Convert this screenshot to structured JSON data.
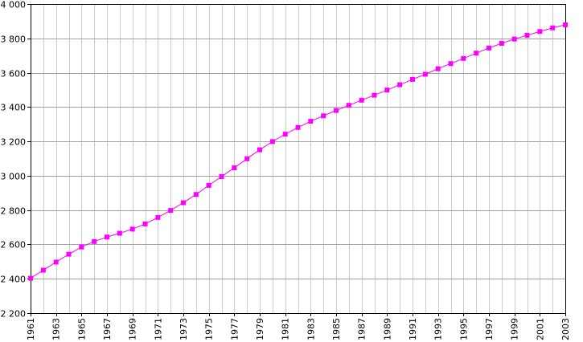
{
  "chart_data": {
    "type": "line",
    "title": "",
    "xlabel": "",
    "ylabel": "",
    "x": [
      1961,
      1962,
      1963,
      1964,
      1965,
      1966,
      1967,
      1968,
      1969,
      1970,
      1971,
      1972,
      1973,
      1974,
      1975,
      1976,
      1977,
      1978,
      1979,
      1980,
      1981,
      1982,
      1983,
      1984,
      1985,
      1986,
      1987,
      1988,
      1989,
      1990,
      1991,
      1992,
      1993,
      1994,
      1995,
      1996,
      1997,
      1998,
      1999,
      2000,
      2001,
      2002,
      2003
    ],
    "series": [
      {
        "values": [
          2403,
          2450,
          2497,
          2543,
          2585,
          2617,
          2643,
          2665,
          2689,
          2719,
          2757,
          2798,
          2843,
          2891,
          2944,
          2995,
          3046,
          3099,
          3151,
          3199,
          3242,
          3281,
          3317,
          3349,
          3380,
          3410,
          3440,
          3469,
          3499,
          3530,
          3561,
          3591,
          3623,
          3653,
          3683,
          3714,
          3744,
          3771,
          3796,
          3818,
          3840,
          3861,
          3879
        ],
        "color": "#ff00ff"
      }
    ],
    "xlim": [
      1961,
      2003
    ],
    "ylim": [
      2200,
      4000
    ],
    "y_ticks": [
      2200,
      2400,
      2600,
      2800,
      3000,
      3200,
      3400,
      3600,
      3800,
      4000
    ],
    "y_tick_labels": [
      "2 200",
      "2 400",
      "2 600",
      "2 800",
      "3 000",
      "3 200",
      "3 400",
      "3 600",
      "3 800",
      "4 000"
    ],
    "x_tick_labels": [
      "1961",
      "1963",
      "1965",
      "1967",
      "1969",
      "1971",
      "1973",
      "1975",
      "1977",
      "1979",
      "1981",
      "1983",
      "1985",
      "1987",
      "1989",
      "1991",
      "1993",
      "1995",
      "1997",
      "1999",
      "2001",
      "2003"
    ],
    "grid": true,
    "legend": "none",
    "marker": "square"
  }
}
